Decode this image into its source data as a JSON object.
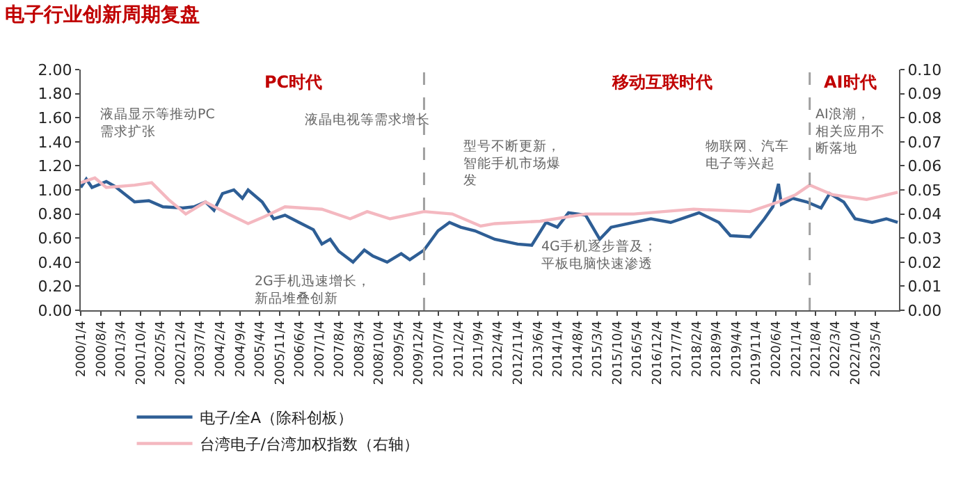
{
  "chart_data": {
    "type": "line",
    "title": "电子行业创新周期复盘",
    "series": [
      {
        "name": "电子/全A（除科创板）",
        "color": "#2e5e95",
        "x": [
          "2000-01",
          "2000-03",
          "2000-05",
          "2000-10",
          "2001-01",
          "2001-08",
          "2002-01",
          "2002-06",
          "2003-01",
          "2003-05",
          "2003-09",
          "2003-12",
          "2004-03",
          "2004-07",
          "2004-10",
          "2004-12",
          "2005-05",
          "2005-07",
          "2005-09",
          "2006-01",
          "2006-06",
          "2006-11",
          "2007-02",
          "2007-05",
          "2007-08",
          "2008-01",
          "2008-05",
          "2008-08",
          "2009-01",
          "2009-06",
          "2009-09",
          "2010-02",
          "2010-07",
          "2010-11",
          "2011-03",
          "2011-08",
          "2012-03",
          "2012-11",
          "2013-04",
          "2013-09",
          "2014-01",
          "2014-05",
          "2014-11",
          "2015-04",
          "2015-08",
          "2016-04",
          "2016-10",
          "2017-05",
          "2018-03",
          "2018-10",
          "2019-02",
          "2019-09",
          "2020-02",
          "2020-05",
          "2020-07",
          "2020-08",
          "2020-12",
          "2021-05",
          "2021-10",
          "2022-01",
          "2022-06",
          "2022-10",
          "2023-04",
          "2023-09",
          "2024-01"
        ],
        "values": [
          1.02,
          1.09,
          1.02,
          1.07,
          1.03,
          0.9,
          0.91,
          0.86,
          0.85,
          0.86,
          0.9,
          0.83,
          0.97,
          1.0,
          0.93,
          1.0,
          0.9,
          0.83,
          0.76,
          0.79,
          0.73,
          0.67,
          0.55,
          0.59,
          0.49,
          0.4,
          0.5,
          0.45,
          0.4,
          0.47,
          0.42,
          0.5,
          0.66,
          0.73,
          0.69,
          0.66,
          0.59,
          0.55,
          0.54,
          0.73,
          0.69,
          0.81,
          0.79,
          0.59,
          0.69,
          0.73,
          0.76,
          0.73,
          0.81,
          0.73,
          0.62,
          0.61,
          0.76,
          0.86,
          1.05,
          0.88,
          0.93,
          0.9,
          0.85,
          0.97,
          0.9,
          0.76,
          0.73,
          0.76,
          0.73
        ]
      },
      {
        "name": "台湾电子/台湾加权指数（右轴）",
        "color": "#f4b8c0",
        "axis": "y2",
        "x": [
          "2000-01",
          "2000-06",
          "2000-10",
          "2001-08",
          "2002-02",
          "2002-08",
          "2003-02",
          "2003-09",
          "2004-05",
          "2004-12",
          "2005-06",
          "2006-01",
          "2007-02",
          "2007-12",
          "2008-06",
          "2009-02",
          "2010-02",
          "2010-12",
          "2011-10",
          "2012-03",
          "2013-07",
          "2014-11",
          "2016-04",
          "2018-01",
          "2019-09",
          "2020-07",
          "2021-01",
          "2021-06",
          "2022-02",
          "2023-02",
          "2024-01"
        ],
        "values": [
          0.053,
          0.055,
          0.051,
          0.052,
          0.053,
          0.046,
          0.04,
          0.045,
          0.04,
          0.036,
          0.039,
          0.043,
          0.042,
          0.038,
          0.041,
          0.038,
          0.041,
          0.04,
          0.035,
          0.036,
          0.037,
          0.04,
          0.04,
          0.042,
          0.041,
          0.045,
          0.048,
          0.052,
          0.048,
          0.046,
          0.049
        ]
      }
    ],
    "xlim": [
      "2000-01-01",
      "2024-01-15"
    ],
    "xticks": [
      {
        "value": "2000-01-04",
        "label": "2000/1/4"
      },
      {
        "value": "2000-08-04",
        "label": "2000/8/4"
      },
      {
        "value": "2001-03-04",
        "label": "2001/3/4"
      },
      {
        "value": "2001-10-04",
        "label": "2001/10/4"
      },
      {
        "value": "2002-05-04",
        "label": "2002/5/4"
      },
      {
        "value": "2002-12-04",
        "label": "2002/12/4"
      },
      {
        "value": "2003-07-04",
        "label": "2003/7/4"
      },
      {
        "value": "2004-02-04",
        "label": "2004/2/4"
      },
      {
        "value": "2004-09-04",
        "label": "2004/9/4"
      },
      {
        "value": "2005-04-04",
        "label": "2005/4/4"
      },
      {
        "value": "2005-11-04",
        "label": "2005/11/4"
      },
      {
        "value": "2006-06-04",
        "label": "2006/6/4"
      },
      {
        "value": "2007-01-04",
        "label": "2007/1/4"
      },
      {
        "value": "2007-08-04",
        "label": "2007/8/4"
      },
      {
        "value": "2008-03-04",
        "label": "2008/3/4"
      },
      {
        "value": "2008-10-04",
        "label": "2008/10/4"
      },
      {
        "value": "2009-05-04",
        "label": "2009/5/4"
      },
      {
        "value": "2009-12-04",
        "label": "2009/12/4"
      },
      {
        "value": "2010-07-04",
        "label": "2010/7/4"
      },
      {
        "value": "2011-02-04",
        "label": "2011/2/4"
      },
      {
        "value": "2011-09-04",
        "label": "2011/9/4"
      },
      {
        "value": "2012-04-04",
        "label": "2012/4/4"
      },
      {
        "value": "2012-11-04",
        "label": "2012/11/4"
      },
      {
        "value": "2013-06-04",
        "label": "2013/6/4"
      },
      {
        "value": "2014-01-04",
        "label": "2014/1/4"
      },
      {
        "value": "2014-08-04",
        "label": "2014/8/4"
      },
      {
        "value": "2015-03-04",
        "label": "2015/3/4"
      },
      {
        "value": "2015-10-04",
        "label": "2015/10/4"
      },
      {
        "value": "2016-05-04",
        "label": "2016/5/4"
      },
      {
        "value": "2016-12-04",
        "label": "2016/12/4"
      },
      {
        "value": "2017-07-04",
        "label": "2017/7/4"
      },
      {
        "value": "2018-02-04",
        "label": "2018/2/4"
      },
      {
        "value": "2018-09-04",
        "label": "2018/9/4"
      },
      {
        "value": "2019-04-04",
        "label": "2019/4/4"
      },
      {
        "value": "2019-11-04",
        "label": "2019/11/4"
      },
      {
        "value": "2020-06-04",
        "label": "2020/6/4"
      },
      {
        "value": "2021-01-04",
        "label": "2021/1/4"
      },
      {
        "value": "2021-08-04",
        "label": "2021/8/4"
      },
      {
        "value": "2022-03-04",
        "label": "2022/3/4"
      },
      {
        "value": "2022-10-04",
        "label": "2022/10/4"
      },
      {
        "value": "2023-05-04",
        "label": "2023/5/4"
      }
    ],
    "ylim": [
      0,
      2
    ],
    "yticks": [
      {
        "value": 0,
        "label": "0.00"
      },
      {
        "value": 0.2,
        "label": "0.20"
      },
      {
        "value": 0.4,
        "label": "0.40"
      },
      {
        "value": 0.6,
        "label": "0.60"
      },
      {
        "value": 0.8,
        "label": "0.80"
      },
      {
        "value": 1,
        "label": "1.00"
      },
      {
        "value": 1.2,
        "label": "1.20"
      },
      {
        "value": 1.4,
        "label": "1.40"
      },
      {
        "value": 1.6,
        "label": "1.60"
      },
      {
        "value": 1.8,
        "label": "1.80"
      },
      {
        "value": 2,
        "label": "2.00"
      }
    ],
    "y2lim": [
      0,
      0.1
    ],
    "y2ticks": [
      {
        "value": 0,
        "label": "0.00"
      },
      {
        "value": 0.01,
        "label": "0.01"
      },
      {
        "value": 0.02,
        "label": "0.02"
      },
      {
        "value": 0.03,
        "label": "0.03"
      },
      {
        "value": 0.04,
        "label": "0.04"
      },
      {
        "value": 0.05,
        "label": "0.05"
      },
      {
        "value": 0.06,
        "label": "0.06"
      },
      {
        "value": 0.07,
        "label": "0.07"
      },
      {
        "value": 0.08,
        "label": "0.08"
      },
      {
        "value": 0.09,
        "label": "0.09"
      },
      {
        "value": 0.1,
        "label": "0.10"
      }
    ],
    "ref_lines": [
      {
        "axis": "x",
        "value": "2010-02",
        "color": "#a0a0a0",
        "line_style": "dashed"
      },
      {
        "axis": "x",
        "value": "2021-06",
        "color": "#a0a0a0",
        "line_style": "dashed"
      }
    ],
    "annotations": [
      "PC时代",
      "移动互联时代",
      "AI时代",
      "液晶显示等推动PC需求扩张",
      "液晶电视等需求增长",
      "型号不断更新，智能手机市场爆发",
      "2G手机迅速增长，新品堆叠创新",
      "4G手机逐步普及；平板电脑快速渗透",
      "物联网、汽车电子等兴起",
      "AI浪潮，相关应用不断落地"
    ],
    "legend": "bottom",
    "marker": "none",
    "line_style": "solid"
  }
}
